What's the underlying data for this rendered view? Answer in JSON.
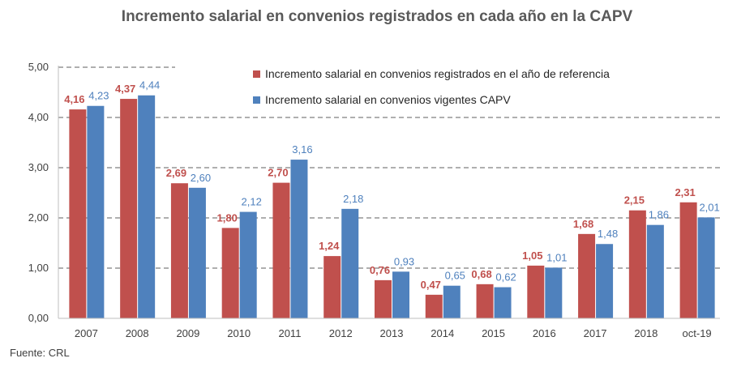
{
  "source": "Fuente: CRL",
  "chart_data": {
    "type": "bar",
    "title": "Incremento salarial en convenios registrados en cada año en la CAPV",
    "categories": [
      "2007",
      "2008",
      "2009",
      "2010",
      "2011",
      "2012",
      "2013",
      "2014",
      "2015",
      "2016",
      "2017",
      "2018",
      "oct-19"
    ],
    "series": [
      {
        "name": "Incremento salarial en convenios registrados en el año de referencia",
        "color": "#C0504D",
        "values": [
          4.16,
          4.37,
          2.69,
          1.8,
          2.7,
          1.24,
          0.76,
          0.47,
          0.68,
          1.05,
          1.68,
          2.15,
          2.31
        ],
        "labels": [
          "4,16",
          "4,37",
          "2,69",
          "1,80",
          "2,70",
          "1,24",
          "0,76",
          "0,47",
          "0,68",
          "1,05",
          "1,68",
          "2,15",
          "2,31"
        ]
      },
      {
        "name": "Incremento salarial en convenios vigentes CAPV",
        "color": "#4F81BD",
        "values": [
          4.23,
          4.44,
          2.6,
          2.12,
          3.16,
          2.18,
          0.93,
          0.65,
          0.62,
          1.01,
          1.48,
          1.86,
          2.01
        ],
        "labels": [
          "4,23",
          "4,44",
          "2,60",
          "2,12",
          "3,16",
          "2,18",
          "0,93",
          "0,65",
          "0,62",
          "1,01",
          "1,48",
          "1,86",
          "2,01"
        ]
      }
    ],
    "y_ticks": [
      "0,00",
      "1,00",
      "2,00",
      "3,00",
      "4,00",
      "5,00"
    ],
    "ylim": [
      0,
      5
    ],
    "grid": true,
    "legend": "top-right"
  }
}
